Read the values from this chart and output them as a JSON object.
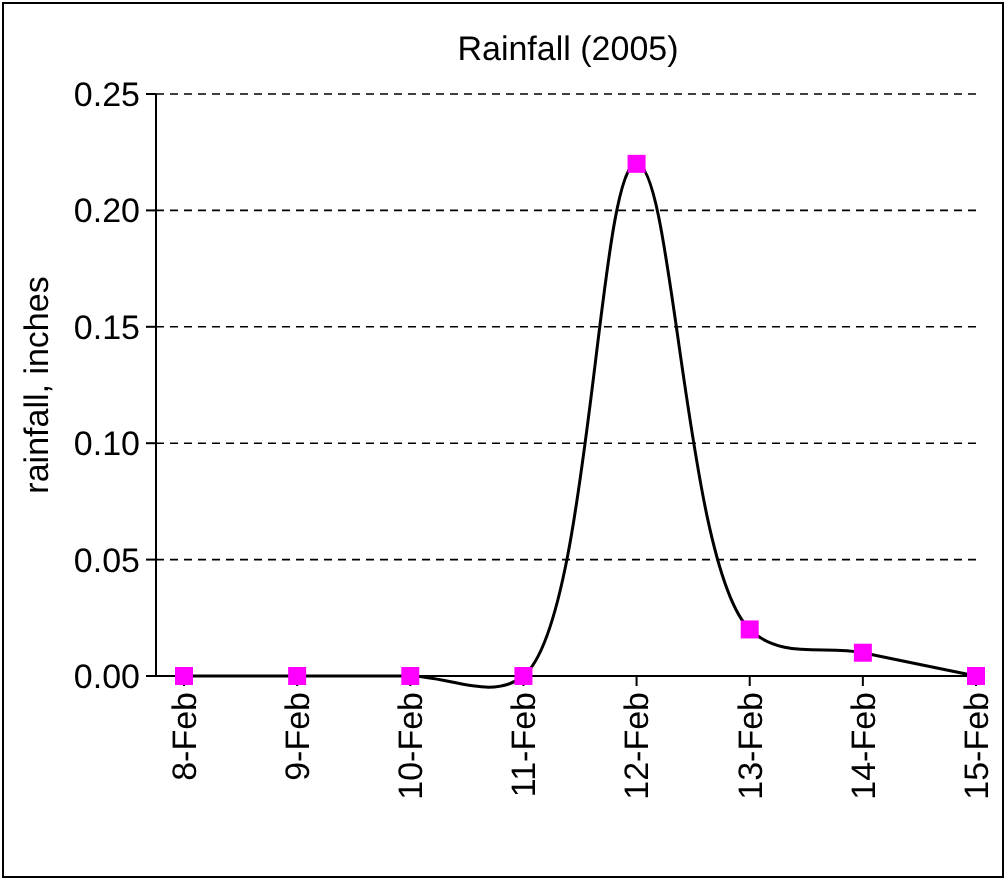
{
  "chart_data": {
    "type": "line",
    "title": "Rainfall (2005)",
    "ylabel": "rainfall, inches",
    "categories": [
      "8-Feb",
      "9-Feb",
      "10-Feb",
      "11-Feb",
      "12-Feb",
      "13-Feb",
      "14-Feb",
      "15-Feb"
    ],
    "series": [
      {
        "color": "#000000",
        "colors": [
          "#ff00ff",
          "#ff00ff",
          "#ff00ff",
          "#ff00ff",
          "#ff00ff",
          "#ff00ff",
          "#ff00ff",
          "#ff00ff"
        ],
        "values": [
          0,
          0,
          0,
          0,
          0.22,
          0.02,
          0.01,
          0
        ]
      }
    ],
    "ylim": [
      0,
      0.25
    ],
    "yticks": [
      {
        "value": 0,
        "label": "0.00"
      },
      {
        "value": 0.05,
        "label": "0.05"
      },
      {
        "value": 0.1,
        "label": "0.10"
      },
      {
        "value": 0.15,
        "label": "0.15"
      },
      {
        "value": 0.2,
        "label": "0.20"
      },
      {
        "value": 0.25,
        "label": "0.25"
      }
    ],
    "grid": "y",
    "marker": "square",
    "line_style": "solid"
  }
}
